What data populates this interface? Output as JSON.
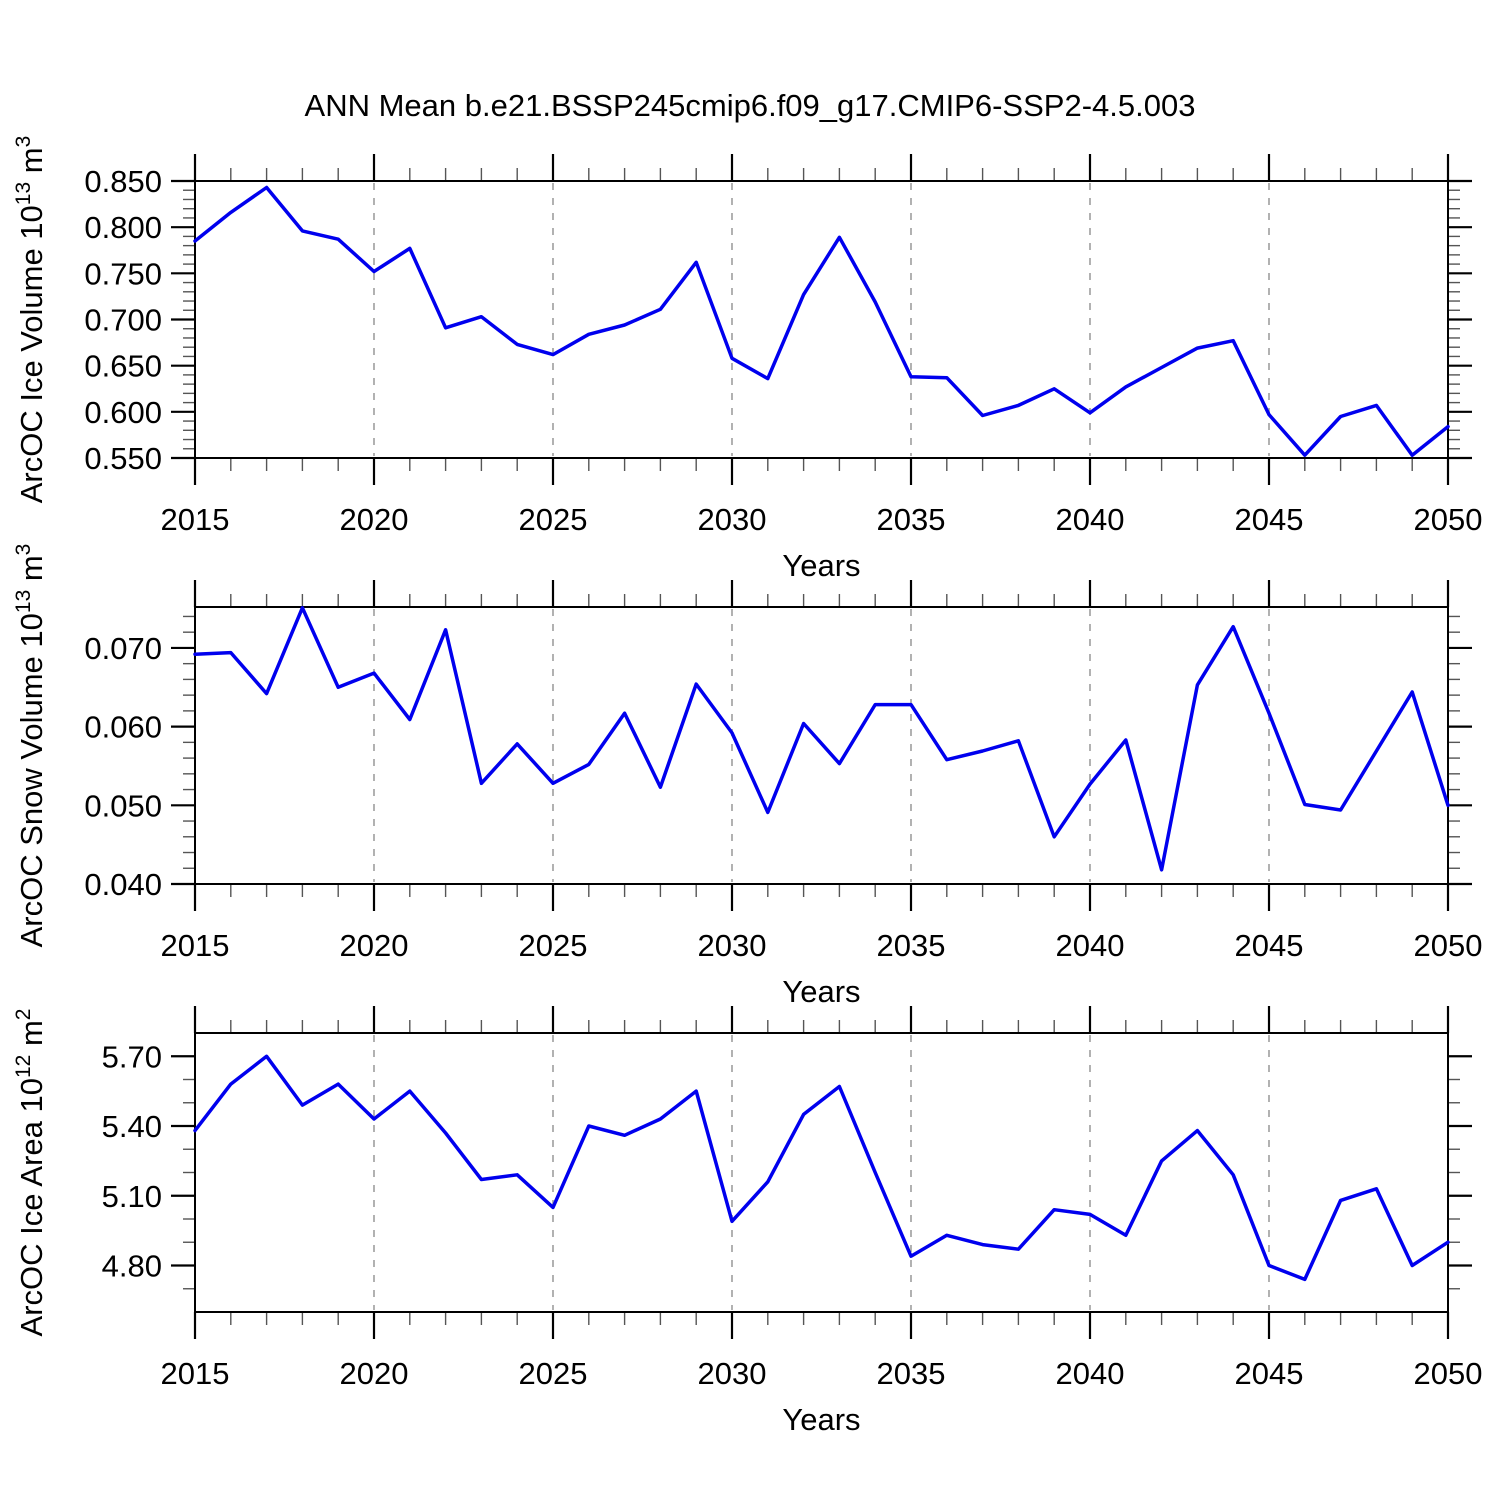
{
  "title": "ANN Mean b.e21.BSSP245cmip6.f09_g17.CMIP6-SSP2-4.5.003",
  "colors": {
    "line": "#0000ee",
    "axis": "#000000",
    "minor_tick": "#555555",
    "grid": "#a9a9a9",
    "background": "#ffffff"
  },
  "chart_data": [
    {
      "type": "line",
      "name": "ice-volume",
      "ylabel_parts": [
        {
          "text": "ArcOC Ice Volume 10",
          "sup": false
        },
        {
          "text": "13",
          "sup": true
        },
        {
          "text": " m",
          "sup": false
        },
        {
          "text": "3",
          "sup": true
        }
      ],
      "xlabel": "Years",
      "x": [
        2015,
        2016,
        2017,
        2018,
        2019,
        2020,
        2021,
        2022,
        2023,
        2024,
        2025,
        2026,
        2027,
        2028,
        2029,
        2030,
        2031,
        2032,
        2033,
        2034,
        2035,
        2036,
        2037,
        2038,
        2039,
        2040,
        2041,
        2042,
        2043,
        2044,
        2045,
        2046,
        2047,
        2048,
        2049,
        2050
      ],
      "values": [
        0.785,
        0.816,
        0.843,
        0.796,
        0.787,
        0.752,
        0.777,
        0.691,
        0.703,
        0.673,
        0.662,
        0.684,
        0.694,
        0.711,
        0.762,
        0.658,
        0.636,
        0.727,
        0.789,
        0.719,
        0.638,
        0.637,
        0.596,
        0.607,
        0.625,
        0.599,
        0.627,
        0.648,
        0.669,
        0.677,
        0.597,
        0.553,
        0.595,
        0.607,
        0.553,
        0.584
      ],
      "xlim": [
        2015,
        2050
      ],
      "ylim": [
        0.55,
        0.85
      ],
      "xticks": [
        2015,
        2020,
        2025,
        2030,
        2035,
        2040,
        2045,
        2050
      ],
      "xtick_labels": [
        "2015",
        "2020",
        "2025",
        "2030",
        "2035",
        "2040",
        "2045",
        "2050"
      ],
      "x_minor_step": 1,
      "yticks": [
        0.55,
        0.6,
        0.65,
        0.7,
        0.75,
        0.8,
        0.85
      ],
      "ytick_labels": [
        "0.550",
        "0.600",
        "0.650",
        "0.700",
        "0.750",
        "0.800",
        "0.850"
      ],
      "y_minor_step": 0.01,
      "grid_years": [
        2020,
        2025,
        2030,
        2035,
        2040,
        2045
      ],
      "grid_on": true,
      "legend": "none"
    },
    {
      "type": "line",
      "name": "snow-volume",
      "ylabel_parts": [
        {
          "text": "ArcOC Snow Volume 10",
          "sup": false
        },
        {
          "text": "13",
          "sup": true
        },
        {
          "text": " m",
          "sup": false
        },
        {
          "text": "3",
          "sup": true
        }
      ],
      "xlabel": "Years",
      "x": [
        2015,
        2016,
        2017,
        2018,
        2019,
        2020,
        2021,
        2022,
        2023,
        2024,
        2025,
        2026,
        2027,
        2028,
        2029,
        2030,
        2031,
        2032,
        2033,
        2034,
        2035,
        2036,
        2037,
        2038,
        2039,
        2040,
        2041,
        2042,
        2043,
        2044,
        2045,
        2046,
        2047,
        2048,
        2049,
        2050
      ],
      "values": [
        0.0692,
        0.0694,
        0.0642,
        0.0751,
        0.065,
        0.0668,
        0.0609,
        0.0723,
        0.0528,
        0.0578,
        0.0528,
        0.0552,
        0.0617,
        0.0523,
        0.0654,
        0.0592,
        0.0491,
        0.0604,
        0.0553,
        0.0628,
        0.0628,
        0.0558,
        0.0569,
        0.0582,
        0.046,
        0.0527,
        0.0583,
        0.0418,
        0.0653,
        0.0727,
        0.0617,
        0.0501,
        0.0494,
        0.0569,
        0.0644,
        0.05
      ],
      "xlim": [
        2015,
        2050
      ],
      "ylim": [
        0.04,
        0.0752
      ],
      "xticks": [
        2015,
        2020,
        2025,
        2030,
        2035,
        2040,
        2045,
        2050
      ],
      "xtick_labels": [
        "2015",
        "2020",
        "2025",
        "2030",
        "2035",
        "2040",
        "2045",
        "2050"
      ],
      "x_minor_step": 1,
      "yticks": [
        0.04,
        0.05,
        0.06,
        0.07
      ],
      "ytick_labels": [
        "0.040",
        "0.050",
        "0.060",
        "0.070"
      ],
      "y_minor_step": 0.002,
      "grid_years": [
        2020,
        2025,
        2030,
        2035,
        2040,
        2045
      ],
      "grid_on": true,
      "legend": "none"
    },
    {
      "type": "line",
      "name": "ice-area",
      "ylabel_parts": [
        {
          "text": "ArcOC Ice Area 10",
          "sup": false
        },
        {
          "text": "12",
          "sup": true
        },
        {
          "text": " m",
          "sup": false
        },
        {
          "text": "2",
          "sup": true
        }
      ],
      "xlabel": "Years",
      "x": [
        2015,
        2016,
        2017,
        2018,
        2019,
        2020,
        2021,
        2022,
        2023,
        2024,
        2025,
        2026,
        2027,
        2028,
        2029,
        2030,
        2031,
        2032,
        2033,
        2034,
        2035,
        2036,
        2037,
        2038,
        2039,
        2040,
        2041,
        2042,
        2043,
        2044,
        2045,
        2046,
        2047,
        2048,
        2049,
        2050
      ],
      "values": [
        5.38,
        5.58,
        5.7,
        5.49,
        5.58,
        5.43,
        5.55,
        5.37,
        5.17,
        5.19,
        5.05,
        5.4,
        5.36,
        5.43,
        5.55,
        4.99,
        5.16,
        5.45,
        5.57,
        5.2,
        4.84,
        4.93,
        4.89,
        4.87,
        5.04,
        5.02,
        4.93,
        5.25,
        5.38,
        5.19,
        4.8,
        4.74,
        5.08,
        5.13,
        4.8,
        4.9
      ],
      "xlim": [
        2015,
        2050
      ],
      "ylim": [
        4.6,
        5.8
      ],
      "xticks": [
        2015,
        2020,
        2025,
        2030,
        2035,
        2040,
        2045,
        2050
      ],
      "xtick_labels": [
        "2015",
        "2020",
        "2025",
        "2030",
        "2035",
        "2040",
        "2045",
        "2050"
      ],
      "x_minor_step": 1,
      "yticks": [
        4.8,
        5.1,
        5.4,
        5.7
      ],
      "ytick_labels": [
        "4.80",
        "5.10",
        "5.40",
        "5.70"
      ],
      "y_minor_step": 0.1,
      "grid_years": [
        2020,
        2025,
        2030,
        2035,
        2040,
        2045
      ],
      "grid_on": true,
      "legend": "none"
    }
  ]
}
